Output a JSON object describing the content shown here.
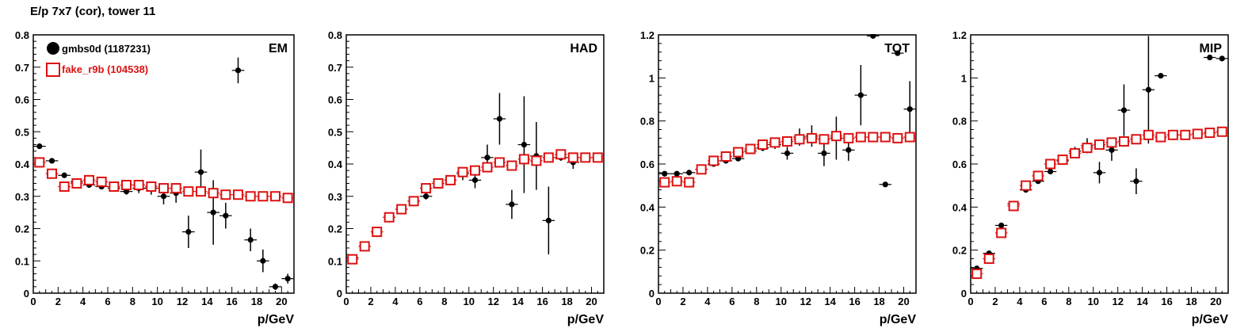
{
  "page": {
    "title": "E/p 7x7 (cor), tower 11"
  },
  "colors": {
    "data": "#000000",
    "mc": "#dd1111",
    "frame": "#000000"
  },
  "chart_data": [
    {
      "type": "scatter",
      "label": "EM",
      "xlabel": "p/GeV",
      "xlim": [
        0,
        21
      ],
      "ylim": [
        0,
        0.8
      ],
      "xticks": [
        0,
        2,
        4,
        6,
        8,
        10,
        12,
        14,
        16,
        18,
        20
      ],
      "yticks": [
        0,
        0.1,
        0.2,
        0.3,
        0.4,
        0.5,
        0.6,
        0.7,
        0.8
      ],
      "ytick_labels": [
        "0",
        "0.1",
        "0.2",
        "0.3",
        "0.4",
        "0.5",
        "0.6",
        "0.7",
        "0.8"
      ],
      "legend": {
        "position": "top-left",
        "entries": [
          "gmbs0d (1187231)",
          "fake_r9b (104538)"
        ]
      },
      "series": [
        {
          "name": "gmbs0d (1187231)",
          "marker": "filled-circle",
          "color": "#000000",
          "x": [
            0.5,
            1.5,
            2.5,
            3.5,
            4.5,
            5.5,
            6.5,
            7.5,
            8.5,
            9.5,
            10.5,
            11.5,
            12.5,
            13.5,
            14.5,
            15.5,
            16.5,
            17.5,
            18.5,
            19.5,
            20.5
          ],
          "y": [
            0.455,
            0.41,
            0.365,
            0.345,
            0.335,
            0.33,
            0.325,
            0.315,
            0.325,
            0.325,
            0.3,
            0.31,
            0.19,
            0.375,
            0.25,
            0.24,
            0.69,
            0.165,
            0.1,
            0.02,
            0.045
          ],
          "yerr": [
            0.008,
            0.008,
            0.008,
            0.008,
            0.008,
            0.008,
            0.008,
            0.01,
            0.015,
            0.02,
            0.025,
            0.03,
            0.05,
            0.07,
            0.1,
            0.04,
            0.04,
            0.035,
            0.035,
            0.01,
            0.015
          ]
        },
        {
          "name": "fake_r9b (104538)",
          "marker": "open-square",
          "color": "#dd1111",
          "x": [
            0.5,
            1.5,
            2.5,
            3.5,
            4.5,
            5.5,
            6.5,
            7.5,
            8.5,
            9.5,
            10.5,
            11.5,
            12.5,
            13.5,
            14.5,
            15.5,
            16.5,
            17.5,
            18.5,
            19.5,
            20.5
          ],
          "y": [
            0.405,
            0.37,
            0.33,
            0.34,
            0.35,
            0.345,
            0.33,
            0.335,
            0.335,
            0.33,
            0.325,
            0.325,
            0.315,
            0.315,
            0.31,
            0.305,
            0.305,
            0.3,
            0.3,
            0.3,
            0.295
          ]
        }
      ]
    },
    {
      "type": "scatter",
      "label": "HAD",
      "xlabel": "p/GeV",
      "xlim": [
        0,
        21
      ],
      "ylim": [
        0,
        0.8
      ],
      "xticks": [
        0,
        2,
        4,
        6,
        8,
        10,
        12,
        14,
        16,
        18,
        20
      ],
      "yticks": [
        0,
        0.1,
        0.2,
        0.3,
        0.4,
        0.5,
        0.6,
        0.7,
        0.8
      ],
      "ytick_labels": [
        "0",
        "0.1",
        "0.2",
        "0.3",
        "0.4",
        "0.5",
        "0.6",
        "0.7",
        "0.8"
      ],
      "series": [
        {
          "marker": "filled-circle",
          "color": "#000000",
          "x": [
            0.5,
            1.5,
            2.5,
            3.5,
            4.5,
            5.5,
            6.5,
            7.5,
            8.5,
            9.5,
            10.5,
            11.5,
            12.5,
            13.5,
            14.5,
            15.5,
            16.5,
            17.5,
            18.5
          ],
          "y": [
            0.11,
            0.145,
            0.19,
            0.235,
            0.26,
            0.285,
            0.3,
            0.34,
            0.35,
            0.37,
            0.35,
            0.42,
            0.54,
            0.275,
            0.46,
            0.425,
            0.225,
            0.42,
            0.405
          ],
          "yerr": [
            0.008,
            0.008,
            0.008,
            0.008,
            0.008,
            0.008,
            0.01,
            0.012,
            0.015,
            0.02,
            0.025,
            0.04,
            0.08,
            0.045,
            0.15,
            0.105,
            0.105,
            0.01,
            0.02
          ]
        },
        {
          "marker": "open-square",
          "color": "#dd1111",
          "x": [
            0.5,
            1.5,
            2.5,
            3.5,
            4.5,
            5.5,
            6.5,
            7.5,
            8.5,
            9.5,
            10.5,
            11.5,
            12.5,
            13.5,
            14.5,
            15.5,
            16.5,
            17.5,
            18.5,
            19.5,
            20.5
          ],
          "y": [
            0.105,
            0.145,
            0.19,
            0.235,
            0.26,
            0.285,
            0.325,
            0.34,
            0.35,
            0.375,
            0.38,
            0.39,
            0.405,
            0.395,
            0.415,
            0.41,
            0.42,
            0.43,
            0.42,
            0.42,
            0.42
          ]
        }
      ]
    },
    {
      "type": "scatter",
      "label": "TOT",
      "xlabel": "p/GeV",
      "xlim": [
        0,
        21
      ],
      "ylim": [
        0,
        1.2
      ],
      "xticks": [
        0,
        2,
        4,
        6,
        8,
        10,
        12,
        14,
        16,
        18,
        20
      ],
      "yticks": [
        0,
        0.2,
        0.4,
        0.6,
        0.8,
        1.0,
        1.2
      ],
      "ytick_labels": [
        "0",
        "0.2",
        "0.4",
        "0.6",
        "0.8",
        "1",
        "1.2"
      ],
      "series": [
        {
          "marker": "filled-circle",
          "color": "#000000",
          "x": [
            0.5,
            1.5,
            2.5,
            3.5,
            4.5,
            5.5,
            6.5,
            7.5,
            8.5,
            9.5,
            10.5,
            11.5,
            12.5,
            13.5,
            14.5,
            15.5,
            16.5,
            17.5,
            18.5,
            19.5,
            20.5
          ],
          "y": [
            0.555,
            0.555,
            0.56,
            0.575,
            0.6,
            0.615,
            0.625,
            0.66,
            0.675,
            0.69,
            0.65,
            0.725,
            0.73,
            0.65,
            0.72,
            0.665,
            0.92,
            1.195,
            0.505,
            1.115,
            0.855
          ],
          "yerr": [
            0.01,
            0.01,
            0.01,
            0.01,
            0.01,
            0.01,
            0.01,
            0.012,
            0.015,
            0.02,
            0.03,
            0.04,
            0.05,
            0.06,
            0.1,
            0.05,
            0.14,
            0.01,
            0.01,
            0.01,
            0.13
          ]
        },
        {
          "marker": "open-square",
          "color": "#dd1111",
          "x": [
            0.5,
            1.5,
            2.5,
            3.5,
            4.5,
            5.5,
            6.5,
            7.5,
            8.5,
            9.5,
            10.5,
            11.5,
            12.5,
            13.5,
            14.5,
            15.5,
            16.5,
            17.5,
            18.5,
            19.5,
            20.5
          ],
          "y": [
            0.515,
            0.52,
            0.515,
            0.575,
            0.615,
            0.635,
            0.655,
            0.67,
            0.69,
            0.7,
            0.705,
            0.715,
            0.72,
            0.715,
            0.73,
            0.72,
            0.725,
            0.725,
            0.725,
            0.72,
            0.725
          ]
        }
      ]
    },
    {
      "type": "scatter",
      "label": "MIP",
      "xlabel": "p/GeV",
      "xlim": [
        0,
        21
      ],
      "ylim": [
        0,
        1.2
      ],
      "xticks": [
        0,
        2,
        4,
        6,
        8,
        10,
        12,
        14,
        16,
        18,
        20
      ],
      "yticks": [
        0,
        0.2,
        0.4,
        0.6,
        0.8,
        1.0,
        1.2
      ],
      "ytick_labels": [
        "0",
        "0.2",
        "0.4",
        "0.6",
        "0.8",
        "1",
        "1.2"
      ],
      "series": [
        {
          "marker": "filled-circle",
          "color": "#000000",
          "x": [
            0.5,
            1.5,
            2.5,
            3.5,
            4.5,
            5.5,
            6.5,
            7.5,
            8.5,
            9.5,
            10.5,
            11.5,
            12.5,
            13.5,
            14.5,
            15.5,
            19.5,
            20.5
          ],
          "y": [
            0.115,
            0.185,
            0.315,
            0.415,
            0.48,
            0.52,
            0.565,
            0.615,
            0.66,
            0.685,
            0.56,
            0.665,
            0.85,
            0.52,
            0.945,
            1.01,
            1.095,
            1.09
          ],
          "yerr": [
            0.008,
            0.008,
            0.008,
            0.008,
            0.008,
            0.01,
            0.01,
            0.015,
            0.02,
            0.035,
            0.05,
            0.05,
            0.12,
            0.06,
            0.25,
            0.01,
            0.01,
            0.01
          ]
        },
        {
          "marker": "open-square",
          "color": "#dd1111",
          "x": [
            0.5,
            1.5,
            2.5,
            3.5,
            4.5,
            5.5,
            6.5,
            7.5,
            8.5,
            9.5,
            10.5,
            11.5,
            12.5,
            13.5,
            14.5,
            15.5,
            16.5,
            17.5,
            18.5,
            19.5,
            20.5
          ],
          "y": [
            0.09,
            0.16,
            0.28,
            0.405,
            0.5,
            0.545,
            0.6,
            0.62,
            0.65,
            0.675,
            0.69,
            0.7,
            0.705,
            0.715,
            0.735,
            0.725,
            0.735,
            0.735,
            0.74,
            0.745,
            0.75
          ]
        }
      ]
    }
  ]
}
